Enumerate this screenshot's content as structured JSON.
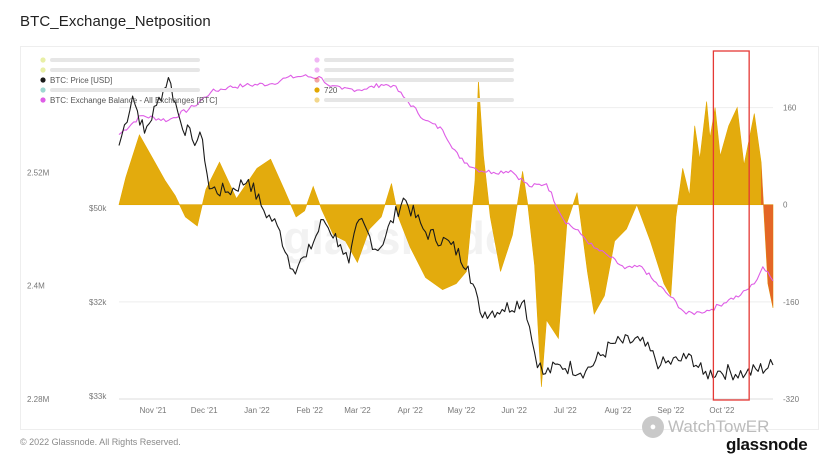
{
  "page": {
    "title": "BTC_Exchange_Netposition",
    "copyright": "© 2022 Glassnode. All Rights Reserved.",
    "watermark": "glassnode",
    "brand_icon": "wechat-icon",
    "brand_name": "WatchTowER",
    "brand_logo_text": "glassnode"
  },
  "colors": {
    "netposition": "#e2a700",
    "price": "#1a1a1a",
    "balance": "#de5de6",
    "highlight": "#e53935",
    "axis": "#888888",
    "grid": "#eeeeee"
  },
  "chart_data": {
    "type": "line",
    "title": "BTC_Exchange_Netposition",
    "x_range": [
      "2021-10-12",
      "2022-10-31"
    ],
    "x_ticks": [
      "Nov '21",
      "Dec '21",
      "Jan '22",
      "Feb '22",
      "Mar '22",
      "Apr '22",
      "May '22",
      "Jun '22",
      "Jul '22",
      "Aug '22",
      "Sep '22",
      "Oct '22"
    ],
    "axes": {
      "balance": {
        "side": "left",
        "ticks": [
          "2.52M",
          "2.4M",
          "2.28M"
        ],
        "ylim": [
          2280000,
          2640000
        ]
      },
      "price": {
        "side": "left-inner",
        "ticks": [
          "$50k",
          "$32k",
          "$33k"
        ],
        "tick_positions": [
          207,
          301,
          395
        ],
        "ylim": [
          15000,
          70000
        ]
      },
      "net": {
        "side": "right",
        "ticks": [
          "160",
          "0",
          "-160",
          "-320"
        ],
        "ylim": [
          -320,
          240
        ]
      }
    },
    "legend": [
      {
        "label": "",
        "color": "#cddc39",
        "faint": true
      },
      {
        "label": "",
        "color": "#cddc39",
        "faint": true
      },
      {
        "label": "BTC: Price [USD]",
        "color": "#1a1a1a",
        "faint": false
      },
      {
        "label": "",
        "color": "#26a69a",
        "faint": true
      },
      {
        "label": "BTC: Exchange Balance - All Exchanges [BTC]",
        "color": "#de5de6",
        "faint": false
      },
      {
        "label": "",
        "color": "#de5de6",
        "faint": true
      },
      {
        "label": "",
        "color": "#de5de6",
        "faint": true
      },
      {
        "label": "",
        "color": "#e53935",
        "faint": true
      },
      {
        "label": "720",
        "color": "#e2a700",
        "faint": false
      },
      {
        "label": "",
        "color": "#e2a700",
        "faint": true
      }
    ],
    "series": [
      {
        "name": "BTC: Price [USD]",
        "axis": "price",
        "points": [
          [
            "2021-10-12",
            56000
          ],
          [
            "2021-10-20",
            64000
          ],
          [
            "2021-10-27",
            58000
          ],
          [
            "2021-11-03",
            62500
          ],
          [
            "2021-11-10",
            67000
          ],
          [
            "2021-11-17",
            60000
          ],
          [
            "2021-11-24",
            57000
          ],
          [
            "2021-11-30",
            57000
          ],
          [
            "2021-12-04",
            49000
          ],
          [
            "2021-12-15",
            48500
          ],
          [
            "2021-12-27",
            50500
          ],
          [
            "2022-01-05",
            45500
          ],
          [
            "2022-01-13",
            43000
          ],
          [
            "2022-01-22",
            36000
          ],
          [
            "2022-01-30",
            38000
          ],
          [
            "2022-02-09",
            44000
          ],
          [
            "2022-02-19",
            40000
          ],
          [
            "2022-02-24",
            37000
          ],
          [
            "2022-03-02",
            44000
          ],
          [
            "2022-03-13",
            39000
          ],
          [
            "2022-03-28",
            47500
          ],
          [
            "2022-04-10",
            42000
          ],
          [
            "2022-04-25",
            40000
          ],
          [
            "2022-05-05",
            36500
          ],
          [
            "2022-05-12",
            29000
          ],
          [
            "2022-05-25",
            29500
          ],
          [
            "2022-06-07",
            31000
          ],
          [
            "2022-06-13",
            22500
          ],
          [
            "2022-06-18",
            19000
          ],
          [
            "2022-06-28",
            20500
          ],
          [
            "2022-07-13",
            19500
          ],
          [
            "2022-07-29",
            24000
          ],
          [
            "2022-08-14",
            24400
          ],
          [
            "2022-08-26",
            20500
          ],
          [
            "2022-09-10",
            21500
          ],
          [
            "2022-09-13",
            22000
          ],
          [
            "2022-09-20",
            19000
          ],
          [
            "2022-09-30",
            19500
          ],
          [
            "2022-10-15",
            19100
          ],
          [
            "2022-10-31",
            20500
          ]
        ]
      },
      {
        "name": "BTC: Exchange Balance - All Exchanges [BTC]",
        "axis": "balance",
        "points": [
          [
            "2021-10-12",
            2560000
          ],
          [
            "2021-10-25",
            2580000
          ],
          [
            "2021-11-10",
            2575000
          ],
          [
            "2021-11-25",
            2590000
          ],
          [
            "2021-12-05",
            2605000
          ],
          [
            "2021-12-15",
            2610000
          ],
          [
            "2021-12-25",
            2612000
          ],
          [
            "2022-01-10",
            2614000
          ],
          [
            "2022-01-18",
            2620000
          ],
          [
            "2022-01-28",
            2622000
          ],
          [
            "2022-02-08",
            2620000
          ],
          [
            "2022-02-13",
            2611000
          ],
          [
            "2022-02-20",
            2608000
          ],
          [
            "2022-03-05",
            2608000
          ],
          [
            "2022-03-15",
            2613000
          ],
          [
            "2022-03-22",
            2612000
          ],
          [
            "2022-03-28",
            2600000
          ],
          [
            "2022-04-10",
            2575000
          ],
          [
            "2022-04-20",
            2565000
          ],
          [
            "2022-04-30",
            2535000
          ],
          [
            "2022-05-10",
            2523000
          ],
          [
            "2022-05-20",
            2520000
          ],
          [
            "2022-05-30",
            2522000
          ],
          [
            "2022-06-10",
            2505000
          ],
          [
            "2022-06-20",
            2508000
          ],
          [
            "2022-06-30",
            2470000
          ],
          [
            "2022-07-10",
            2455000
          ],
          [
            "2022-07-18",
            2440000
          ],
          [
            "2022-07-26",
            2432000
          ],
          [
            "2022-08-05",
            2418000
          ],
          [
            "2022-08-15",
            2420000
          ],
          [
            "2022-08-22",
            2405000
          ],
          [
            "2022-09-01",
            2388000
          ],
          [
            "2022-09-10",
            2370000
          ],
          [
            "2022-09-18",
            2372000
          ],
          [
            "2022-09-25",
            2375000
          ],
          [
            "2022-10-05",
            2385000
          ],
          [
            "2022-10-12",
            2390000
          ],
          [
            "2022-10-20",
            2402000
          ],
          [
            "2022-10-25",
            2420000
          ],
          [
            "2022-10-31",
            2405000
          ]
        ]
      },
      {
        "name": "Exchange Netposition",
        "axis": "net",
        "type": "area",
        "points": [
          [
            "2021-10-12",
            0
          ],
          [
            "2021-10-16",
            45
          ],
          [
            "2021-10-24",
            115
          ],
          [
            "2021-11-02",
            70
          ],
          [
            "2021-11-08",
            40
          ],
          [
            "2021-11-14",
            15
          ],
          [
            "2021-11-20",
            -20
          ],
          [
            "2021-11-27",
            -35
          ],
          [
            "2021-12-02",
            25
          ],
          [
            "2021-12-10",
            70
          ],
          [
            "2021-12-20",
            10
          ],
          [
            "2022-01-01",
            60
          ],
          [
            "2022-01-09",
            75
          ],
          [
            "2022-01-17",
            25
          ],
          [
            "2022-01-24",
            -20
          ],
          [
            "2022-01-29",
            -10
          ],
          [
            "2022-02-03",
            30
          ],
          [
            "2022-02-08",
            -8
          ],
          [
            "2022-02-15",
            -50
          ],
          [
            "2022-02-22",
            -60
          ],
          [
            "2022-03-01",
            -95
          ],
          [
            "2022-03-08",
            -40
          ],
          [
            "2022-03-15",
            -20
          ],
          [
            "2022-03-21",
            35
          ],
          [
            "2022-03-25",
            -20
          ],
          [
            "2022-04-01",
            -70
          ],
          [
            "2022-04-10",
            -120
          ],
          [
            "2022-04-20",
            -140
          ],
          [
            "2022-04-28",
            -130
          ],
          [
            "2022-05-04",
            -110
          ],
          [
            "2022-05-09",
            40
          ],
          [
            "2022-05-11",
            205
          ],
          [
            "2022-05-14",
            80
          ],
          [
            "2022-05-18",
            -20
          ],
          [
            "2022-05-24",
            -110
          ],
          [
            "2022-05-31",
            -50
          ],
          [
            "2022-06-06",
            55
          ],
          [
            "2022-06-09",
            0
          ],
          [
            "2022-06-13",
            -100
          ],
          [
            "2022-06-17",
            -300
          ],
          [
            "2022-06-20",
            -190
          ],
          [
            "2022-06-27",
            -220
          ],
          [
            "2022-07-02",
            -30
          ],
          [
            "2022-07-08",
            20
          ],
          [
            "2022-07-14",
            -110
          ],
          [
            "2022-07-18",
            -180
          ],
          [
            "2022-07-24",
            -150
          ],
          [
            "2022-07-30",
            -60
          ],
          [
            "2022-08-06",
            -40
          ],
          [
            "2022-08-12",
            0
          ],
          [
            "2022-08-20",
            -60
          ],
          [
            "2022-08-28",
            -130
          ],
          [
            "2022-09-01",
            -150
          ],
          [
            "2022-09-04",
            -20
          ],
          [
            "2022-09-08",
            60
          ],
          [
            "2022-09-12",
            15
          ],
          [
            "2022-09-15",
            130
          ],
          [
            "2022-09-18",
            75
          ],
          [
            "2022-09-22",
            170
          ],
          [
            "2022-09-24",
            110
          ],
          [
            "2022-09-27",
            160
          ],
          [
            "2022-09-30",
            80
          ],
          [
            "2022-10-05",
            130
          ],
          [
            "2022-10-10",
            160
          ],
          [
            "2022-10-14",
            65
          ],
          [
            "2022-10-20",
            150
          ],
          [
            "2022-10-24",
            70
          ],
          [
            "2022-10-28",
            -130
          ],
          [
            "2022-10-31",
            -170
          ]
        ]
      }
    ],
    "annotations": [
      {
        "type": "box",
        "from": "2022-09-26",
        "to": "2022-10-17",
        "color": "#e53935"
      }
    ]
  }
}
